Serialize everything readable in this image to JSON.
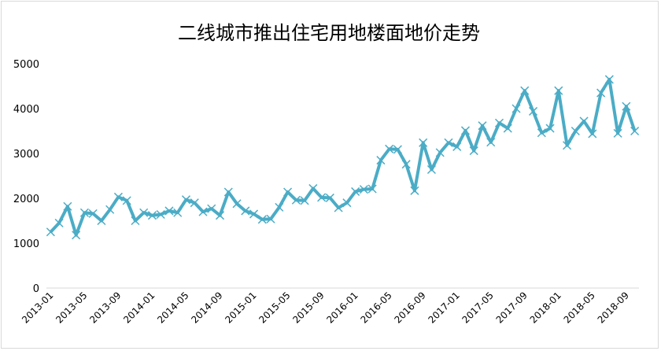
{
  "chart_data": {
    "type": "line",
    "title": "二线城市推出住宅用地楼面地价走势",
    "xlabel": "",
    "ylabel": "",
    "ylim": [
      0,
      5000
    ],
    "y_ticks": [
      "0",
      "1000",
      "2000",
      "3000",
      "4000",
      "5000"
    ],
    "grid": false,
    "legend": "none",
    "series_color": "#4BACC6",
    "marker": "x",
    "x_tick_labels": [
      "2013-01",
      "2013-05",
      "2013-09",
      "2014-01",
      "2014-05",
      "2014-09",
      "2015-01",
      "2015-05",
      "2015-09",
      "2016-01",
      "2016-05",
      "2016-09",
      "2017-01",
      "2017-05",
      "2017-09",
      "2018-01",
      "2018-05",
      "2018-09"
    ],
    "x": [
      "2013-01",
      "2013-02",
      "2013-03",
      "2013-04",
      "2013-05",
      "2013-06",
      "2013-07",
      "2013-08",
      "2013-09",
      "2013-10",
      "2013-11",
      "2013-12",
      "2014-01",
      "2014-02",
      "2014-03",
      "2014-04",
      "2014-05",
      "2014-06",
      "2014-07",
      "2014-08",
      "2014-09",
      "2014-10",
      "2014-11",
      "2014-12",
      "2015-01",
      "2015-02",
      "2015-03",
      "2015-04",
      "2015-05",
      "2015-06",
      "2015-07",
      "2015-08",
      "2015-09",
      "2015-10",
      "2015-11",
      "2015-12",
      "2016-01",
      "2016-02",
      "2016-03",
      "2016-04",
      "2016-05",
      "2016-06",
      "2016-07",
      "2016-08",
      "2016-09",
      "2016-10",
      "2016-11",
      "2016-12",
      "2017-01",
      "2017-02",
      "2017-03",
      "2017-04",
      "2017-05",
      "2017-06",
      "2017-07",
      "2017-08",
      "2017-09",
      "2017-10",
      "2017-11",
      "2017-12",
      "2018-01",
      "2018-02",
      "2018-03",
      "2018-04",
      "2018-05",
      "2018-06",
      "2018-07",
      "2018-08",
      "2018-09",
      "2018-10"
    ],
    "series": [
      {
        "values": [
          1250,
          1450,
          1820,
          1180,
          1680,
          1660,
          1500,
          1750,
          2030,
          1950,
          1500,
          1680,
          1620,
          1640,
          1720,
          1680,
          1970,
          1900,
          1700,
          1770,
          1620,
          2140,
          1880,
          1720,
          1650,
          1530,
          1540,
          1800,
          2140,
          1960,
          1950,
          2220,
          2020,
          2010,
          1790,
          1900,
          2150,
          2200,
          2210,
          2850,
          3100,
          3090,
          2760,
          2170,
          3240,
          2640,
          3020,
          3240,
          3150,
          3510,
          3060,
          3620,
          3250,
          3680,
          3560,
          4000,
          4400,
          3940,
          3460,
          3560,
          4400,
          3180,
          3500,
          3720,
          3440,
          4350,
          4650,
          3450,
          4050,
          3500
        ]
      }
    ]
  }
}
